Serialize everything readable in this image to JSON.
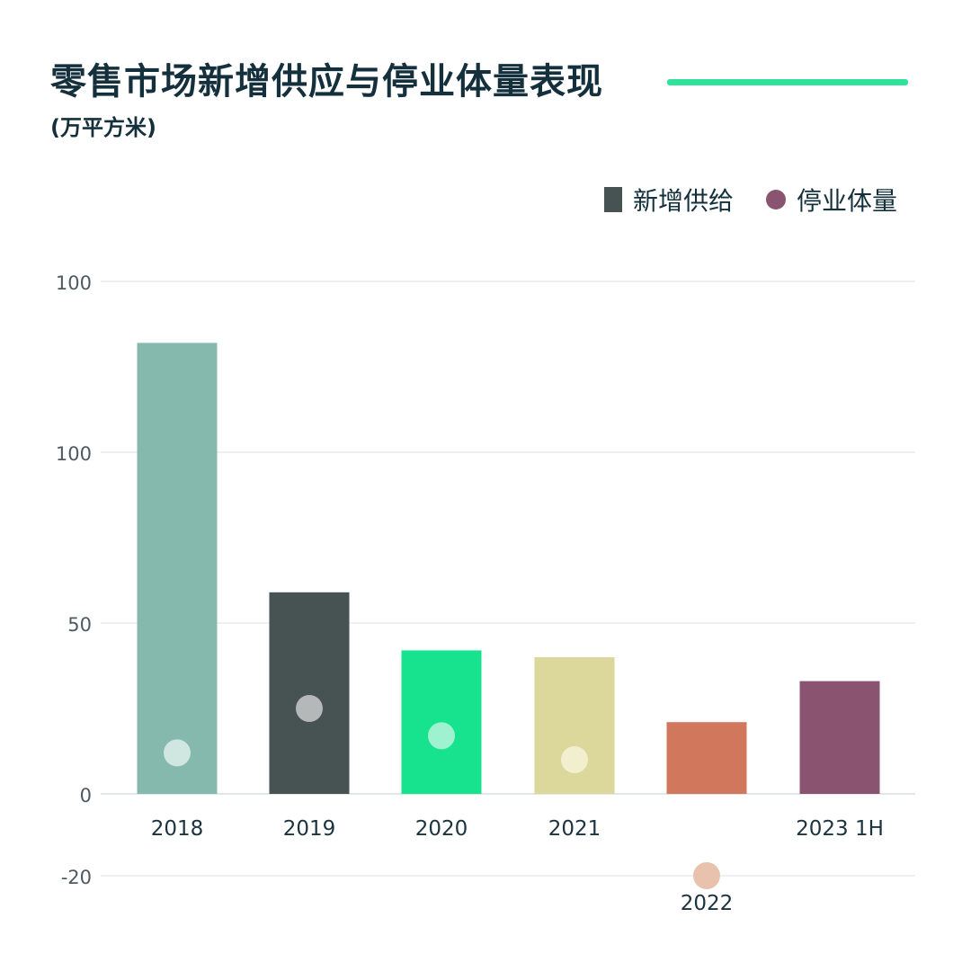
{
  "title": "零售市场新增供应与停业体量表现",
  "subtitle": "(万平方米)",
  "accent_color": "#2ee29a",
  "legend": {
    "supply": {
      "label": "新增供给",
      "color": "#475253"
    },
    "closure": {
      "label": "停业体量",
      "color": "#8a5470"
    }
  },
  "chart_data": {
    "type": "bar",
    "title": "零售市场新增供应与停业体量表现",
    "unit": "(万平方米)",
    "categories": [
      "2018",
      "2019",
      "2020",
      "2021",
      "2022",
      "2023 1H"
    ],
    "y_tick_labels": [
      "100",
      "100",
      "50",
      "0",
      "-20"
    ],
    "ylim": [
      -20,
      150
    ],
    "grid": true,
    "legend_position": "top-right",
    "series": [
      {
        "name": "新增供给",
        "kind": "bar",
        "values": [
          132,
          59,
          42,
          40,
          21,
          33
        ],
        "colors": [
          "#86b9ad",
          "#475253",
          "#17e38f",
          "#dcd79a",
          "#d1775b",
          "#8a5470"
        ]
      },
      {
        "name": "停业体量",
        "kind": "dot",
        "values": [
          12,
          25,
          17,
          10,
          -20,
          null
        ],
        "colors": [
          "#cfe6e1",
          "#b4b8b8",
          "#9ef2cf",
          "#f2efcf",
          "#e8c2ac",
          null
        ]
      }
    ]
  }
}
